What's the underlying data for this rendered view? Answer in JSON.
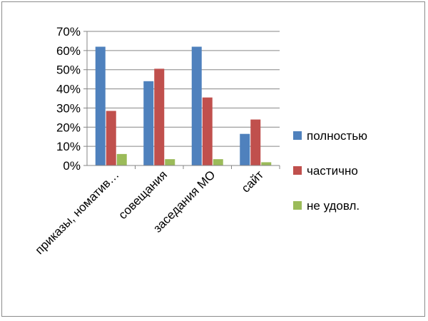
{
  "chart_data": {
    "type": "bar",
    "title": "",
    "xlabel": "",
    "ylabel": "",
    "categories": [
      "приказы, номатив…",
      "совещания",
      "заседания МО",
      "сайт"
    ],
    "ylim": [
      0,
      0.7
    ],
    "yticks": [
      "0%",
      "10%",
      "20%",
      "30%",
      "40%",
      "50%",
      "60%",
      "70%"
    ],
    "grid": true,
    "legend_position": "right",
    "series": [
      {
        "name": "полностью",
        "color": "#4f81bd",
        "values": [
          0.62,
          0.44,
          0.62,
          0.165
        ]
      },
      {
        "name": "частично",
        "color": "#c0504d",
        "values": [
          0.285,
          0.505,
          0.355,
          0.24
        ]
      },
      {
        "name": "не удовл.",
        "color": "#9bbb59",
        "values": [
          0.06,
          0.033,
          0.033,
          0.017
        ]
      }
    ]
  }
}
